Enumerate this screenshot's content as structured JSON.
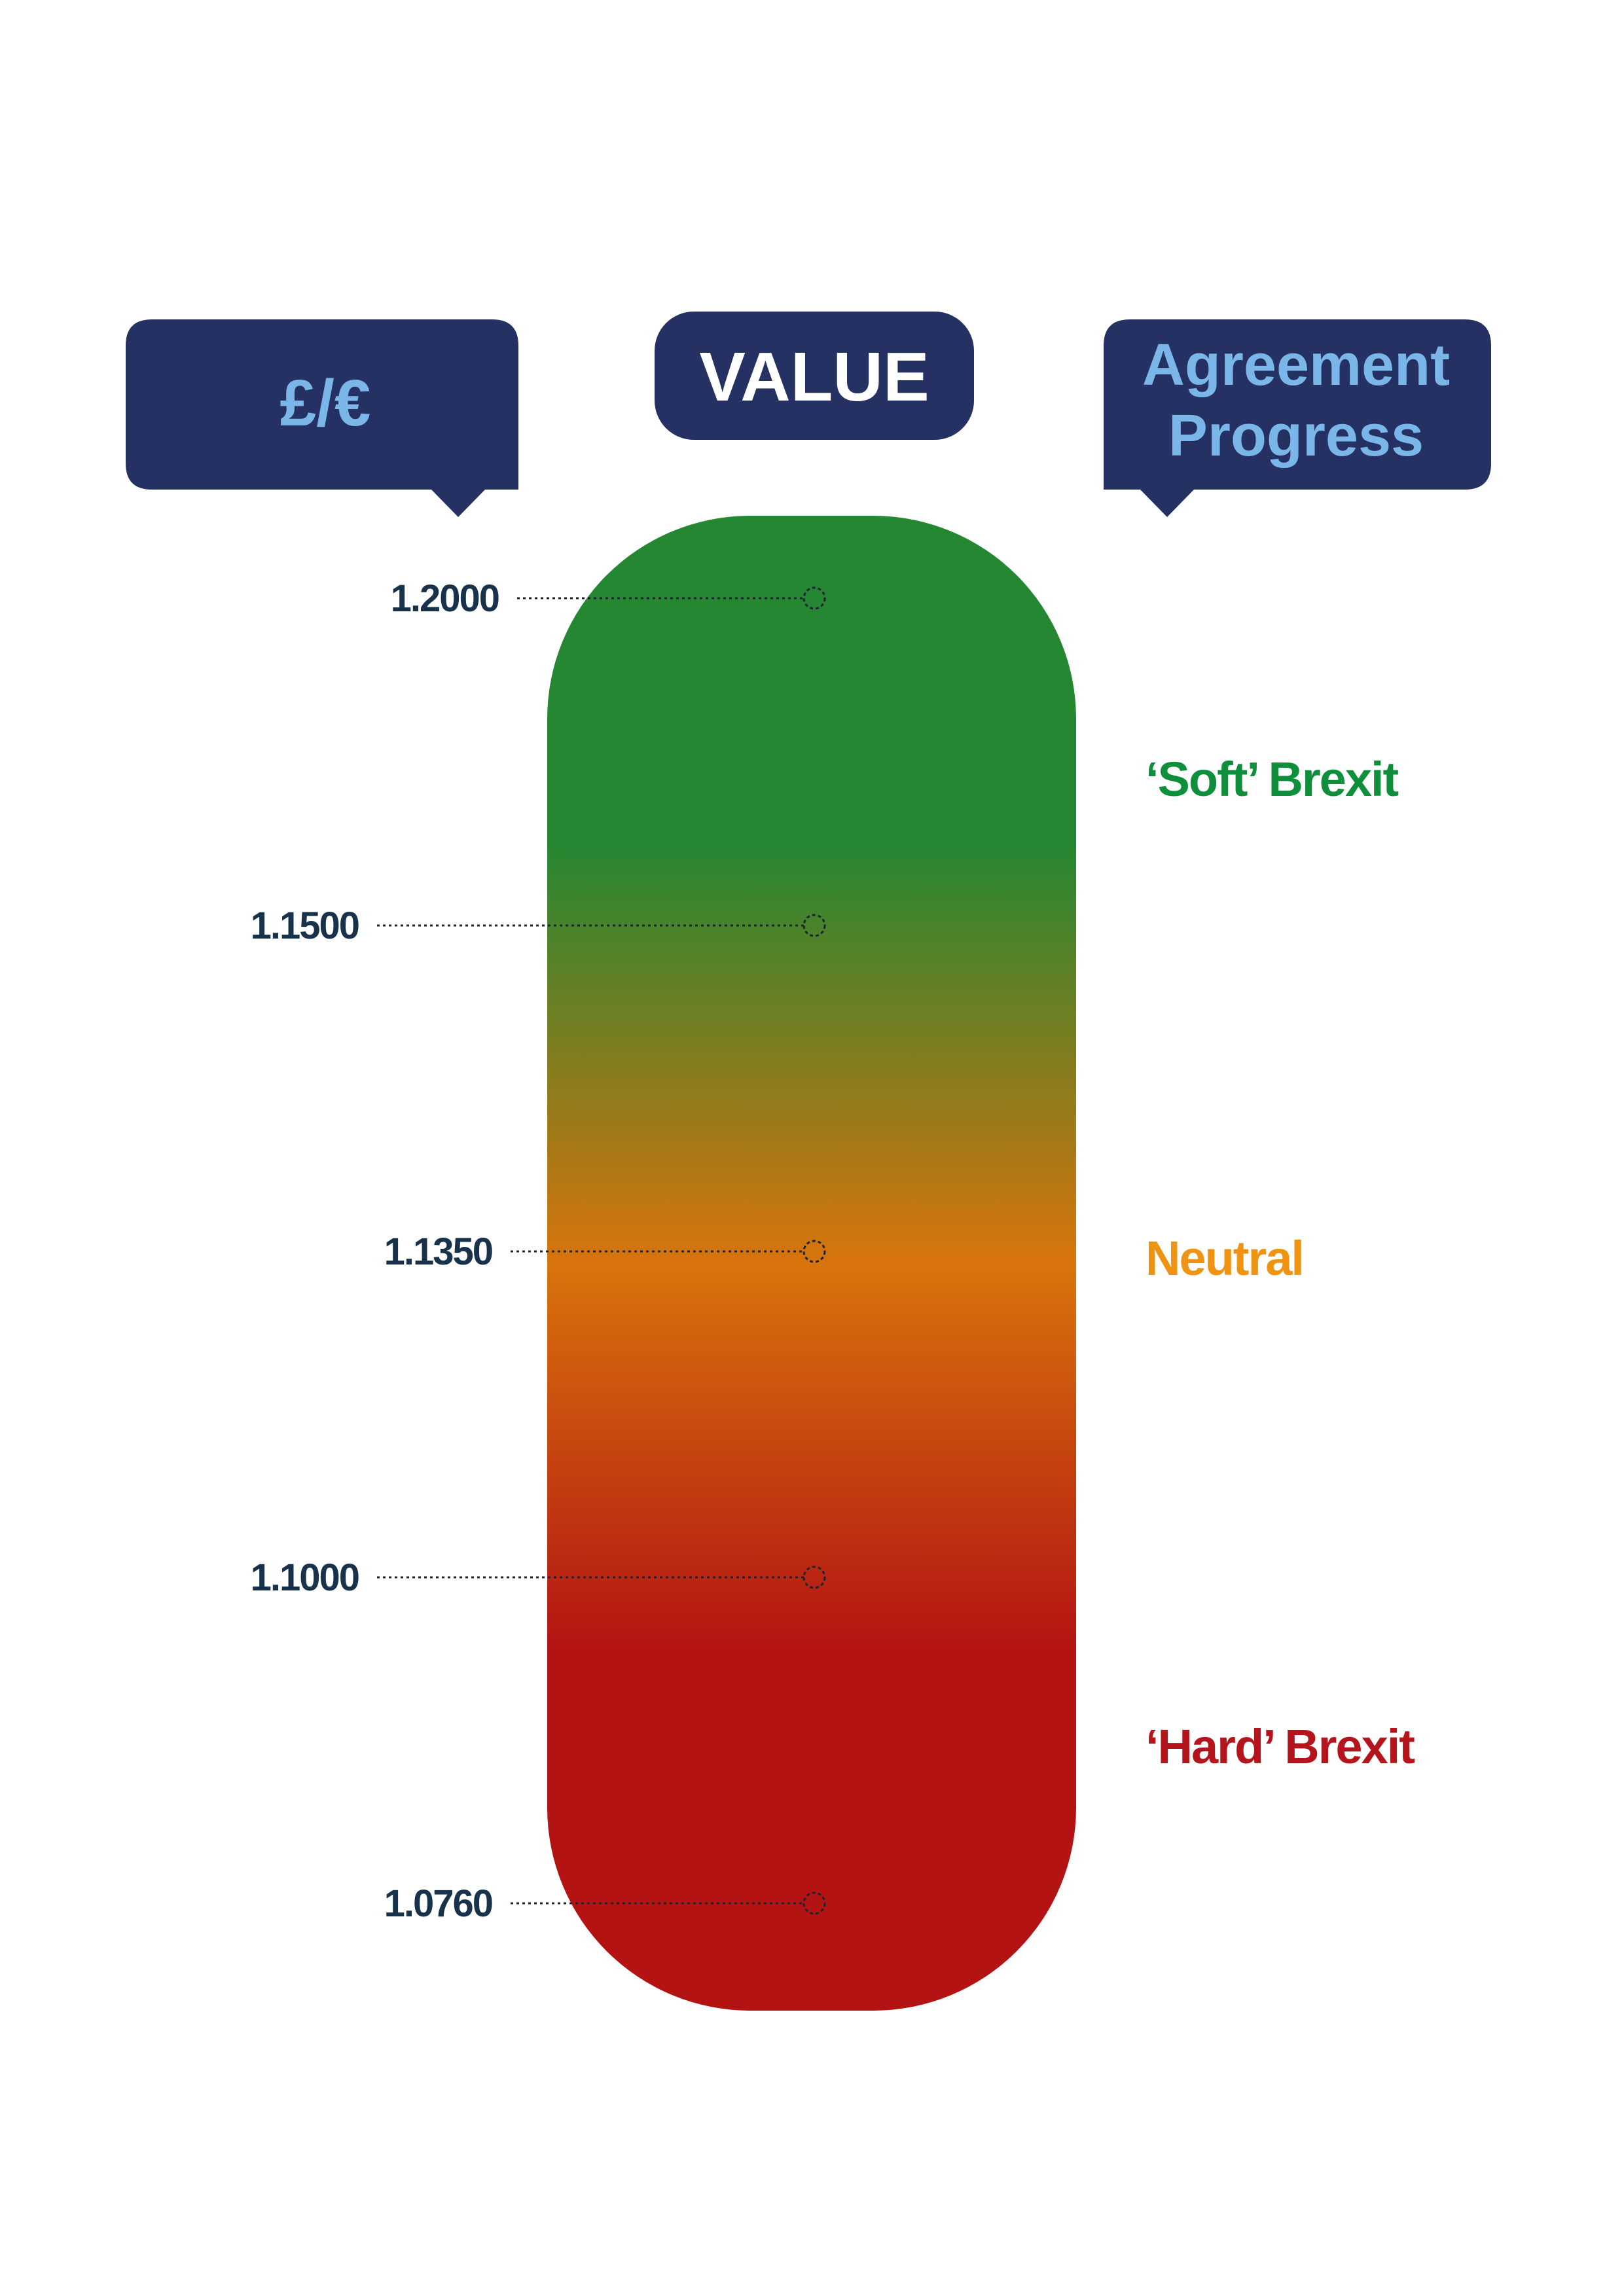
{
  "headers": {
    "currency": "£/€",
    "value": "VALUE",
    "progress_line1": "Agreement",
    "progress_line2": "Progress"
  },
  "ticks": [
    {
      "label": "1.2000",
      "value": 1.2
    },
    {
      "label": "1.1500",
      "value": 1.15
    },
    {
      "label": "1.1350",
      "value": 1.135
    },
    {
      "label": "1.1000",
      "value": 1.1
    },
    {
      "label": "1.0760",
      "value": 1.076
    }
  ],
  "zones": [
    {
      "label": "‘Soft’ Brexit",
      "color": "#0f8f3c"
    },
    {
      "label": "Neutral",
      "color": "#ef9312"
    },
    {
      "label": "‘Hard’ Brexit",
      "color": "#b4151d"
    }
  ],
  "colors": {
    "header_bg": "#243162",
    "header_text_light": "#7bb6e8",
    "header_text_white": "#ffffff",
    "tick_text": "#17324a",
    "gauge_green": "#268733",
    "gauge_orange": "#d8740c",
    "gauge_red": "#b31313"
  }
}
